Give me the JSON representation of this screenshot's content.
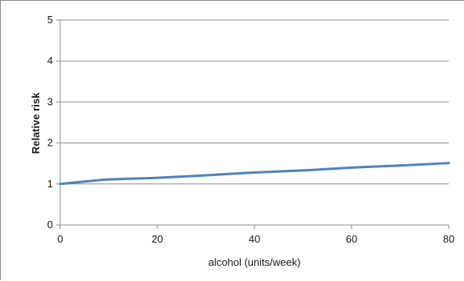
{
  "chart_data": {
    "type": "line",
    "title": "",
    "xlabel": "alcohol (units/week)",
    "ylabel": "Relative risk",
    "xlim": [
      0,
      80
    ],
    "ylim": [
      0,
      5
    ],
    "xticks": [
      0,
      20,
      40,
      60,
      80
    ],
    "yticks": [
      0,
      1,
      2,
      3,
      4,
      5
    ],
    "grid": "horizontal",
    "legend": "none",
    "series": [
      {
        "color": "#4f81bd",
        "x": [
          0,
          5,
          10,
          20,
          30,
          40,
          50,
          60,
          70,
          80
        ],
        "y": [
          1.0,
          1.06,
          1.11,
          1.15,
          1.21,
          1.28,
          1.33,
          1.4,
          1.45,
          1.51
        ]
      }
    ]
  }
}
